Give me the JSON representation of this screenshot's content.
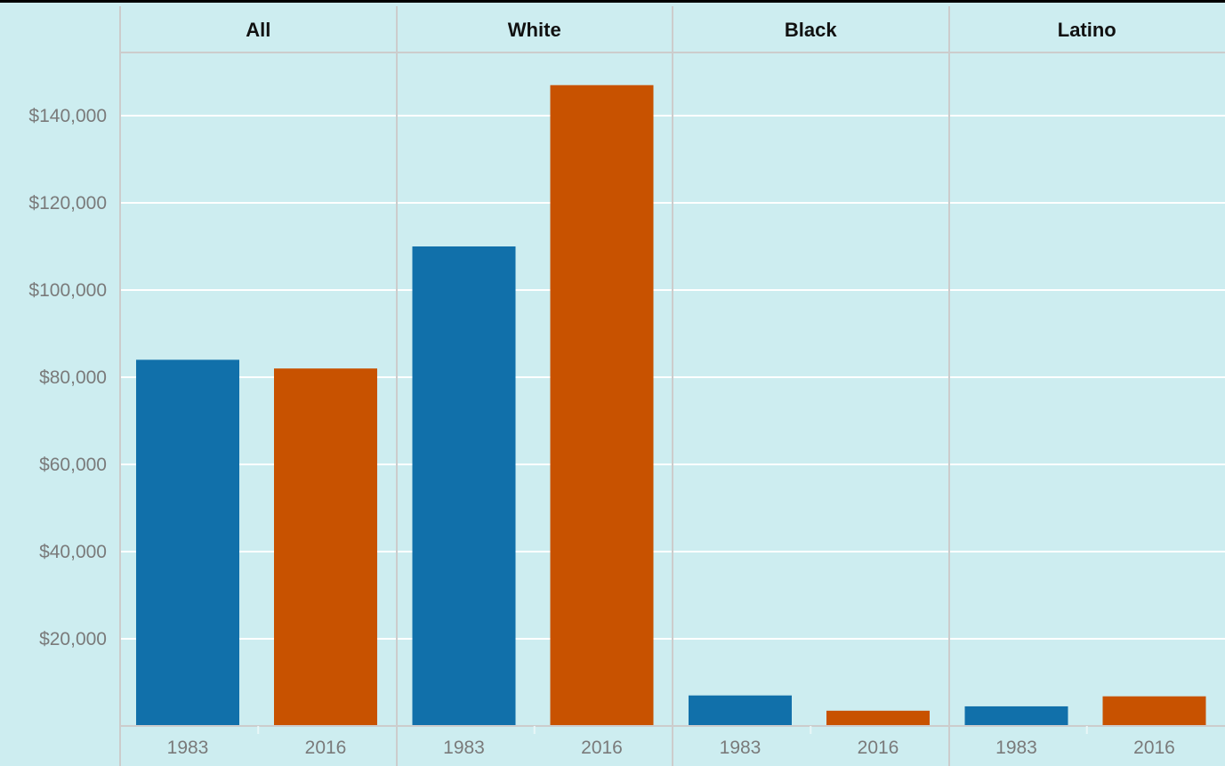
{
  "chart_data": {
    "type": "bar",
    "facets": [
      "All",
      "White",
      "Black",
      "Latino"
    ],
    "categories": [
      "1983",
      "2016"
    ],
    "series": [
      {
        "facet": "All",
        "values": [
          84000,
          82000
        ]
      },
      {
        "facet": "White",
        "values": [
          110000,
          147000
        ]
      },
      {
        "facet": "Black",
        "values": [
          7000,
          3500
        ]
      },
      {
        "facet": "Latino",
        "values": [
          4500,
          6800
        ]
      }
    ],
    "yticks": [
      20000,
      40000,
      60000,
      80000,
      100000,
      120000,
      140000
    ],
    "ytick_labels": [
      "$20,000",
      "$40,000",
      "$60,000",
      "$80,000",
      "$100,000",
      "$120,000",
      "$140,000"
    ],
    "ylim": [
      0,
      154000
    ],
    "title": "",
    "xlabel": "",
    "ylabel": "",
    "grid": true,
    "legend": "none"
  },
  "colors": {
    "bar_1983": "#1170aa",
    "bar_2016": "#c85200",
    "panel_bg": "#cdedf0",
    "grid": "#ffffff",
    "divider": "#cccccc"
  }
}
